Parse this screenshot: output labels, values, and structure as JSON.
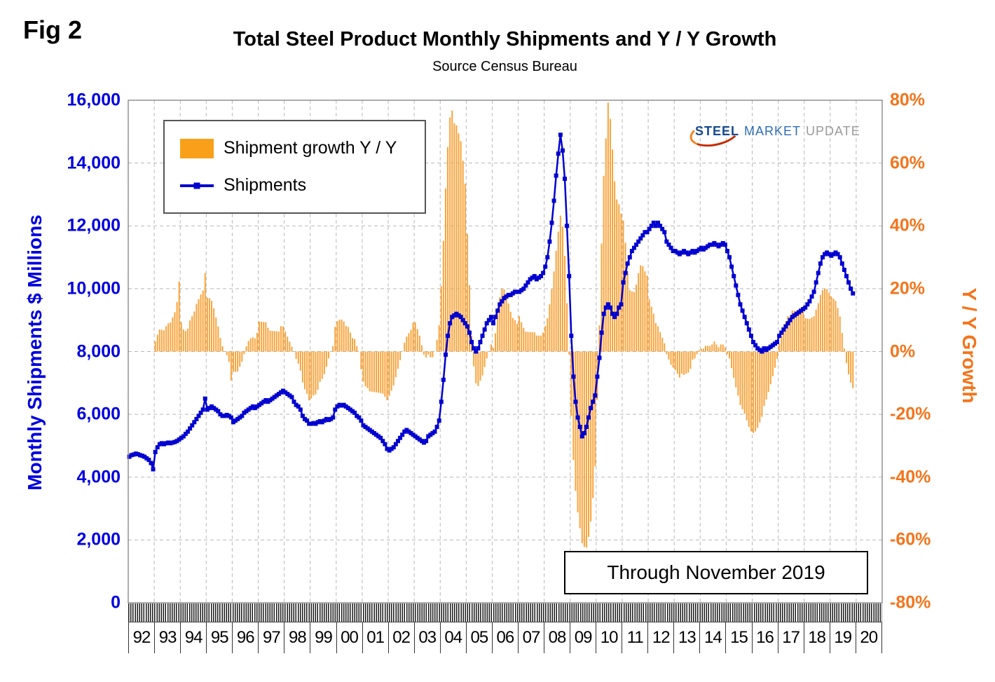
{
  "figure": {
    "fig_label": "Fig 2"
  },
  "logo": {
    "steel": "STEEL",
    "market": "MARKET",
    "update": "UPDATE"
  },
  "chart_data": {
    "type": "combo",
    "title": "Total Steel Product Monthly Shipments and Y / Y Growth",
    "subtitle": "Source Census Bureau",
    "annotation": "Through November 2019",
    "legend_position": "top-left-inside",
    "grid": true,
    "left_axis": {
      "label": "Monthly Shipments $ Millions",
      "min": 0,
      "max": 16000,
      "step": 2000,
      "tick_labels": [
        "0",
        "2,000",
        "4,000",
        "6,000",
        "8,000",
        "10,000",
        "12,000",
        "14,000",
        "16,000"
      ],
      "color": "#0000E0"
    },
    "right_axis": {
      "label": "Y / Y Growth",
      "min": -80,
      "max": 80,
      "step": 20,
      "unit": "%",
      "tick_labels": [
        "-80%",
        "-60%",
        "-40%",
        "-20%",
        "0%",
        "20%",
        "40%",
        "60%",
        "80%"
      ],
      "color": "#F4741B"
    },
    "x_axis": {
      "years": [
        "92",
        "93",
        "94",
        "95",
        "96",
        "97",
        "98",
        "99",
        "00",
        "01",
        "02",
        "03",
        "04",
        "05",
        "06",
        "07",
        "08",
        "09",
        "10",
        "11",
        "12",
        "13",
        "14",
        "15",
        "16",
        "17",
        "18",
        "19",
        "20"
      ]
    },
    "series": [
      {
        "name": "Shipment growth Y / Y",
        "type": "bar",
        "axis": "right",
        "color": "#F9A33A",
        "derivation": "year_over_year_percent_change_of_shipments"
      },
      {
        "name": "Shipments",
        "type": "line",
        "axis": "left",
        "color": "#0000D0",
        "start": "1992-01",
        "end": "2019-11",
        "values": [
          4650,
          4700,
          4720,
          4750,
          4730,
          4700,
          4680,
          4650,
          4600,
          4550,
          4450,
          4250,
          4800,
          4950,
          5050,
          5080,
          5050,
          5080,
          5100,
          5080,
          5100,
          5120,
          5150,
          5200,
          5250,
          5300,
          5380,
          5450,
          5550,
          5650,
          5750,
          5850,
          5950,
          6050,
          6150,
          6500,
          6150,
          6200,
          6250,
          6200,
          6150,
          6100,
          6000,
          5950,
          5950,
          5980,
          5950,
          5900,
          5750,
          5800,
          5850,
          5900,
          5950,
          6050,
          6100,
          6150,
          6200,
          6250,
          6200,
          6250,
          6300,
          6350,
          6400,
          6450,
          6400,
          6450,
          6500,
          6550,
          6600,
          6650,
          6700,
          6750,
          6700,
          6650,
          6600,
          6550,
          6400,
          6300,
          6250,
          6150,
          5950,
          5850,
          5800,
          5700,
          5700,
          5720,
          5700,
          5750,
          5780,
          5750,
          5800,
          5850,
          5820,
          5850,
          5900,
          6150,
          6250,
          6300,
          6280,
          6300,
          6250,
          6200,
          6150,
          6100,
          6050,
          5950,
          5900,
          5800,
          5650,
          5600,
          5550,
          5500,
          5450,
          5400,
          5350,
          5300,
          5250,
          5150,
          5050,
          4900,
          4850,
          4900,
          4950,
          5050,
          5150,
          5250,
          5350,
          5450,
          5500,
          5450,
          5400,
          5350,
          5300,
          5250,
          5200,
          5150,
          5100,
          5150,
          5300,
          5350,
          5400,
          5450,
          5600,
          5800,
          6400,
          7100,
          7900,
          8500,
          8900,
          9100,
          9150,
          9200,
          9150,
          9100,
          9000,
          8900,
          8800,
          8600,
          8300,
          8100,
          8000,
          8100,
          8300,
          8500,
          8700,
          8900,
          9000,
          9100,
          8900,
          9100,
          9300,
          9500,
          9600,
          9700,
          9750,
          9800,
          9800,
          9850,
          9900,
          9900,
          9900,
          9950,
          10000,
          10100,
          10200,
          10300,
          10350,
          10400,
          10300,
          10350,
          10400,
          10500,
          10700,
          11000,
          11500,
          12100,
          12800,
          13600,
          14300,
          14900,
          14400,
          13500,
          12000,
          10400,
          8500,
          7200,
          6400,
          5900,
          5600,
          5300,
          5400,
          5600,
          5900,
          6200,
          6400,
          6600,
          7200,
          7800,
          8600,
          9200,
          9400,
          9500,
          9400,
          9200,
          9100,
          9200,
          9400,
          9500,
          10200,
          10500,
          10800,
          11000,
          11200,
          11300,
          11400,
          11500,
          11600,
          11700,
          11800,
          11800,
          11900,
          12000,
          12100,
          12000,
          12100,
          12000,
          11900,
          11800,
          11500,
          11400,
          11300,
          11200,
          11200,
          11150,
          11100,
          11150,
          11200,
          11150,
          11100,
          11150,
          11200,
          11150,
          11200,
          11250,
          11300,
          11250,
          11300,
          11350,
          11400,
          11400,
          11450,
          11400,
          11350,
          11400,
          11450,
          11400,
          11200,
          11000,
          10700,
          10400,
          10100,
          9800,
          9500,
          9300,
          9100,
          8900,
          8700,
          8500,
          8300,
          8200,
          8100,
          8050,
          8000,
          8100,
          8050,
          8100,
          8150,
          8200,
          8250,
          8300,
          8500,
          8600,
          8700,
          8800,
          8900,
          9000,
          9100,
          9150,
          9200,
          9250,
          9300,
          9350,
          9400,
          9500,
          9600,
          9750,
          9900,
          10200,
          10500,
          10800,
          11000,
          11100,
          11150,
          11100,
          11050,
          11100,
          11150,
          11100,
          11000,
          10800,
          10600,
          10400,
          10200,
          10000,
          9850
        ]
      }
    ]
  }
}
